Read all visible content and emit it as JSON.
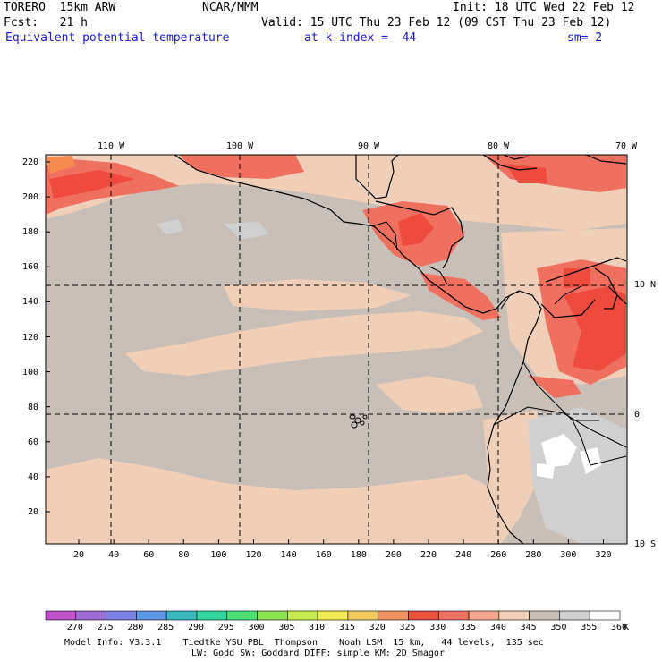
{
  "header": {
    "model": "TORERO  15km ARW",
    "org": "NCAR/MMM",
    "init": "Init: 18 UTC Wed 22 Feb 12",
    "fcst": "Fcst:   21 h",
    "valid": "Valid: 15 UTC Thu 23 Feb 12 (09 CST Thu 23 Feb 12)",
    "field": "Equivalent potential temperature",
    "level": "at k-index =  44",
    "smooth": "sm= 2"
  },
  "map": {
    "lon_labels": [
      "110 W",
      "100 W",
      "90 W",
      "80 W",
      "70 W"
    ],
    "lat_labels": [
      "10 N",
      "0",
      "10 S"
    ],
    "grid_y_ticks": [
      "220",
      "200",
      "180",
      "160",
      "140",
      "120",
      "100",
      "80",
      "60",
      "40",
      "20"
    ],
    "grid_x_ticks": [
      "20",
      "40",
      "60",
      "80",
      "100",
      "120",
      "140",
      "160",
      "180",
      "200",
      "220",
      "240",
      "260",
      "280",
      "300",
      "320"
    ]
  },
  "colorbar": {
    "unit": "K",
    "labels": [
      "270",
      "275",
      "280",
      "285",
      "290",
      "295",
      "300",
      "305",
      "310",
      "315",
      "320",
      "325",
      "330",
      "335",
      "340",
      "345",
      "350",
      "355",
      "360"
    ],
    "colors": [
      "#c050c8",
      "#9c6cd8",
      "#7f7fe8",
      "#5c98e6",
      "#3ab8c0",
      "#30d6a0",
      "#48e070",
      "#8ae450",
      "#c8ec50",
      "#f0ec50",
      "#f4c860",
      "#f09060",
      "#ee5040",
      "#f07060",
      "#f4a890",
      "#f0cfb8",
      "#c8c0b8",
      "#d0d0d0",
      "#ffffff"
    ]
  },
  "footer": {
    "line1": "Model Info: V3.3.1    Tiedtke YSU PBL  Thompson    Noah LSM  15 km,   44 levels,  135 sec",
    "line2": "LW: Godd SW: Goddard DIFF: simple KM: 2D Smagor"
  }
}
